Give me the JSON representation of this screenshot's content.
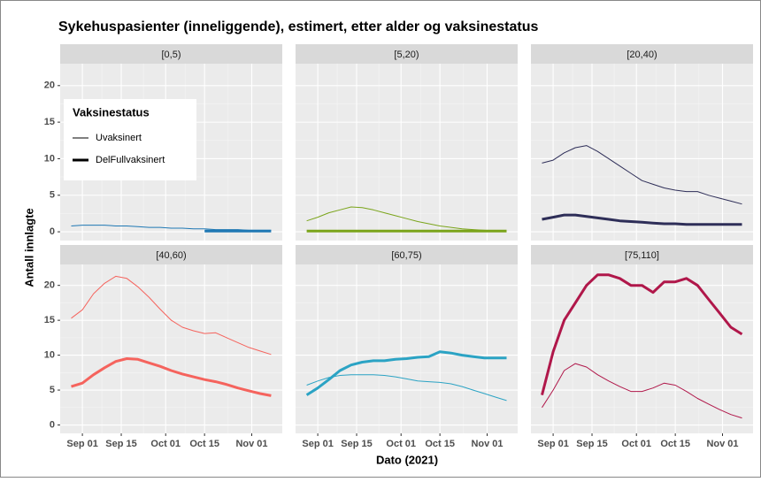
{
  "chart_data": {
    "type": "line",
    "title": "Sykehuspasienter (inneliggende), estimert, etter alder og vaksinestatus",
    "xlabel": "Dato (2021)",
    "ylabel": "Antall innlagte",
    "legend_title": "Vaksinestatus",
    "legend_position": "top-left",
    "series_names": [
      "Uvaksinert",
      "DelFullvaksinert"
    ],
    "grid": true,
    "x": [
      "Aug 28",
      "Sep 01",
      "Sep 05",
      "Sep 09",
      "Sep 13",
      "Sep 17",
      "Sep 21",
      "Sep 25",
      "Sep 29",
      "Oct 03",
      "Oct 07",
      "Oct 11",
      "Oct 15",
      "Oct 19",
      "Oct 23",
      "Oct 27",
      "Oct 31",
      "Nov 04",
      "Nov 08"
    ],
    "xlim": [
      "Aug 24",
      "Nov 12"
    ],
    "xticks": [
      "Sep 01",
      "Sep 15",
      "Oct 01",
      "Oct 15",
      "Nov 01"
    ],
    "ylim": [
      -1.2,
      23
    ],
    "yticks": [
      0,
      5,
      10,
      15,
      20
    ],
    "panels": [
      {
        "label": "[0,5)",
        "color": "#1f78b4",
        "series": [
          {
            "values": [
              0.8,
              0.9,
              0.9,
              0.9,
              0.8,
              0.8,
              0.7,
              0.6,
              0.6,
              0.5,
              0.5,
              0.4,
              0.4,
              0.3,
              0.3,
              0.3,
              0.2,
              0.2,
              0.2
            ]
          },
          {
            "values": [
              null,
              null,
              null,
              null,
              null,
              null,
              null,
              null,
              null,
              null,
              null,
              null,
              0.1,
              0.1,
              0.1,
              0.1,
              0.1,
              0.1,
              0.1
            ]
          }
        ]
      },
      {
        "label": "[5,20)",
        "color": "#7aa41a",
        "series": [
          {
            "values": [
              1.5,
              2.0,
              2.6,
              3.0,
              3.4,
              3.3,
              3.0,
              2.6,
              2.2,
              1.8,
              1.4,
              1.1,
              0.8,
              0.6,
              0.4,
              0.3,
              0.2,
              0.1,
              0.1
            ]
          },
          {
            "values": [
              0.1,
              0.1,
              0.1,
              0.1,
              0.1,
              0.1,
              0.1,
              0.1,
              0.1,
              0.1,
              0.1,
              0.1,
              0.1,
              0.1,
              0.1,
              0.1,
              0.1,
              0.1,
              0.1
            ]
          }
        ]
      },
      {
        "label": "[20,40)",
        "color": "#2e2e58",
        "series": [
          {
            "values": [
              9.4,
              9.8,
              10.8,
              11.5,
              11.8,
              11.0,
              10.0,
              9.0,
              8.0,
              7.0,
              6.5,
              6.0,
              5.7,
              5.5,
              5.5,
              5.0,
              4.6,
              4.2,
              3.8
            ]
          },
          {
            "values": [
              1.7,
              2.0,
              2.3,
              2.3,
              2.1,
              1.9,
              1.7,
              1.5,
              1.4,
              1.3,
              1.2,
              1.1,
              1.1,
              1.0,
              1.0,
              1.0,
              1.0,
              1.0,
              1.0
            ]
          }
        ]
      },
      {
        "label": "[40,60)",
        "color": "#f5635d",
        "series": [
          {
            "values": [
              15.3,
              16.5,
              18.8,
              20.3,
              21.3,
              21.0,
              19.8,
              18.3,
              16.6,
              15.0,
              14.0,
              13.5,
              13.1,
              13.2,
              12.5,
              11.8,
              11.1,
              10.6,
              10.1
            ]
          },
          {
            "values": [
              5.5,
              6.0,
              7.2,
              8.2,
              9.1,
              9.5,
              9.4,
              8.9,
              8.4,
              7.8,
              7.3,
              6.9,
              6.5,
              6.2,
              5.8,
              5.3,
              4.9,
              4.5,
              4.2
            ]
          }
        ]
      },
      {
        "label": "[60,75)",
        "color": "#2ba3c4",
        "series": [
          {
            "values": [
              5.7,
              6.3,
              6.8,
              7.1,
              7.2,
              7.2,
              7.2,
              7.1,
              6.9,
              6.6,
              6.3,
              6.2,
              6.1,
              5.9,
              5.5,
              5.0,
              4.5,
              4.0,
              3.5
            ]
          },
          {
            "values": [
              4.3,
              5.3,
              6.5,
              7.8,
              8.6,
              9.0,
              9.2,
              9.2,
              9.4,
              9.5,
              9.7,
              9.8,
              10.5,
              10.3,
              10.0,
              9.8,
              9.6,
              9.6,
              9.6
            ]
          }
        ]
      },
      {
        "label": "[75,110]",
        "color": "#b0174a",
        "series": [
          {
            "values": [
              2.5,
              5.0,
              7.8,
              8.8,
              8.3,
              7.2,
              6.3,
              5.5,
              4.8,
              4.8,
              5.3,
              6.0,
              5.7,
              4.8,
              3.8,
              3.0,
              2.2,
              1.5,
              1.0
            ]
          },
          {
            "values": [
              4.3,
              10.5,
              15.0,
              17.5,
              20.0,
              21.5,
              21.5,
              21.0,
              20.0,
              20.0,
              19.0,
              20.5,
              20.5,
              21.0,
              20.0,
              18.0,
              16.0,
              14.0,
              13.0
            ]
          }
        ]
      }
    ]
  }
}
